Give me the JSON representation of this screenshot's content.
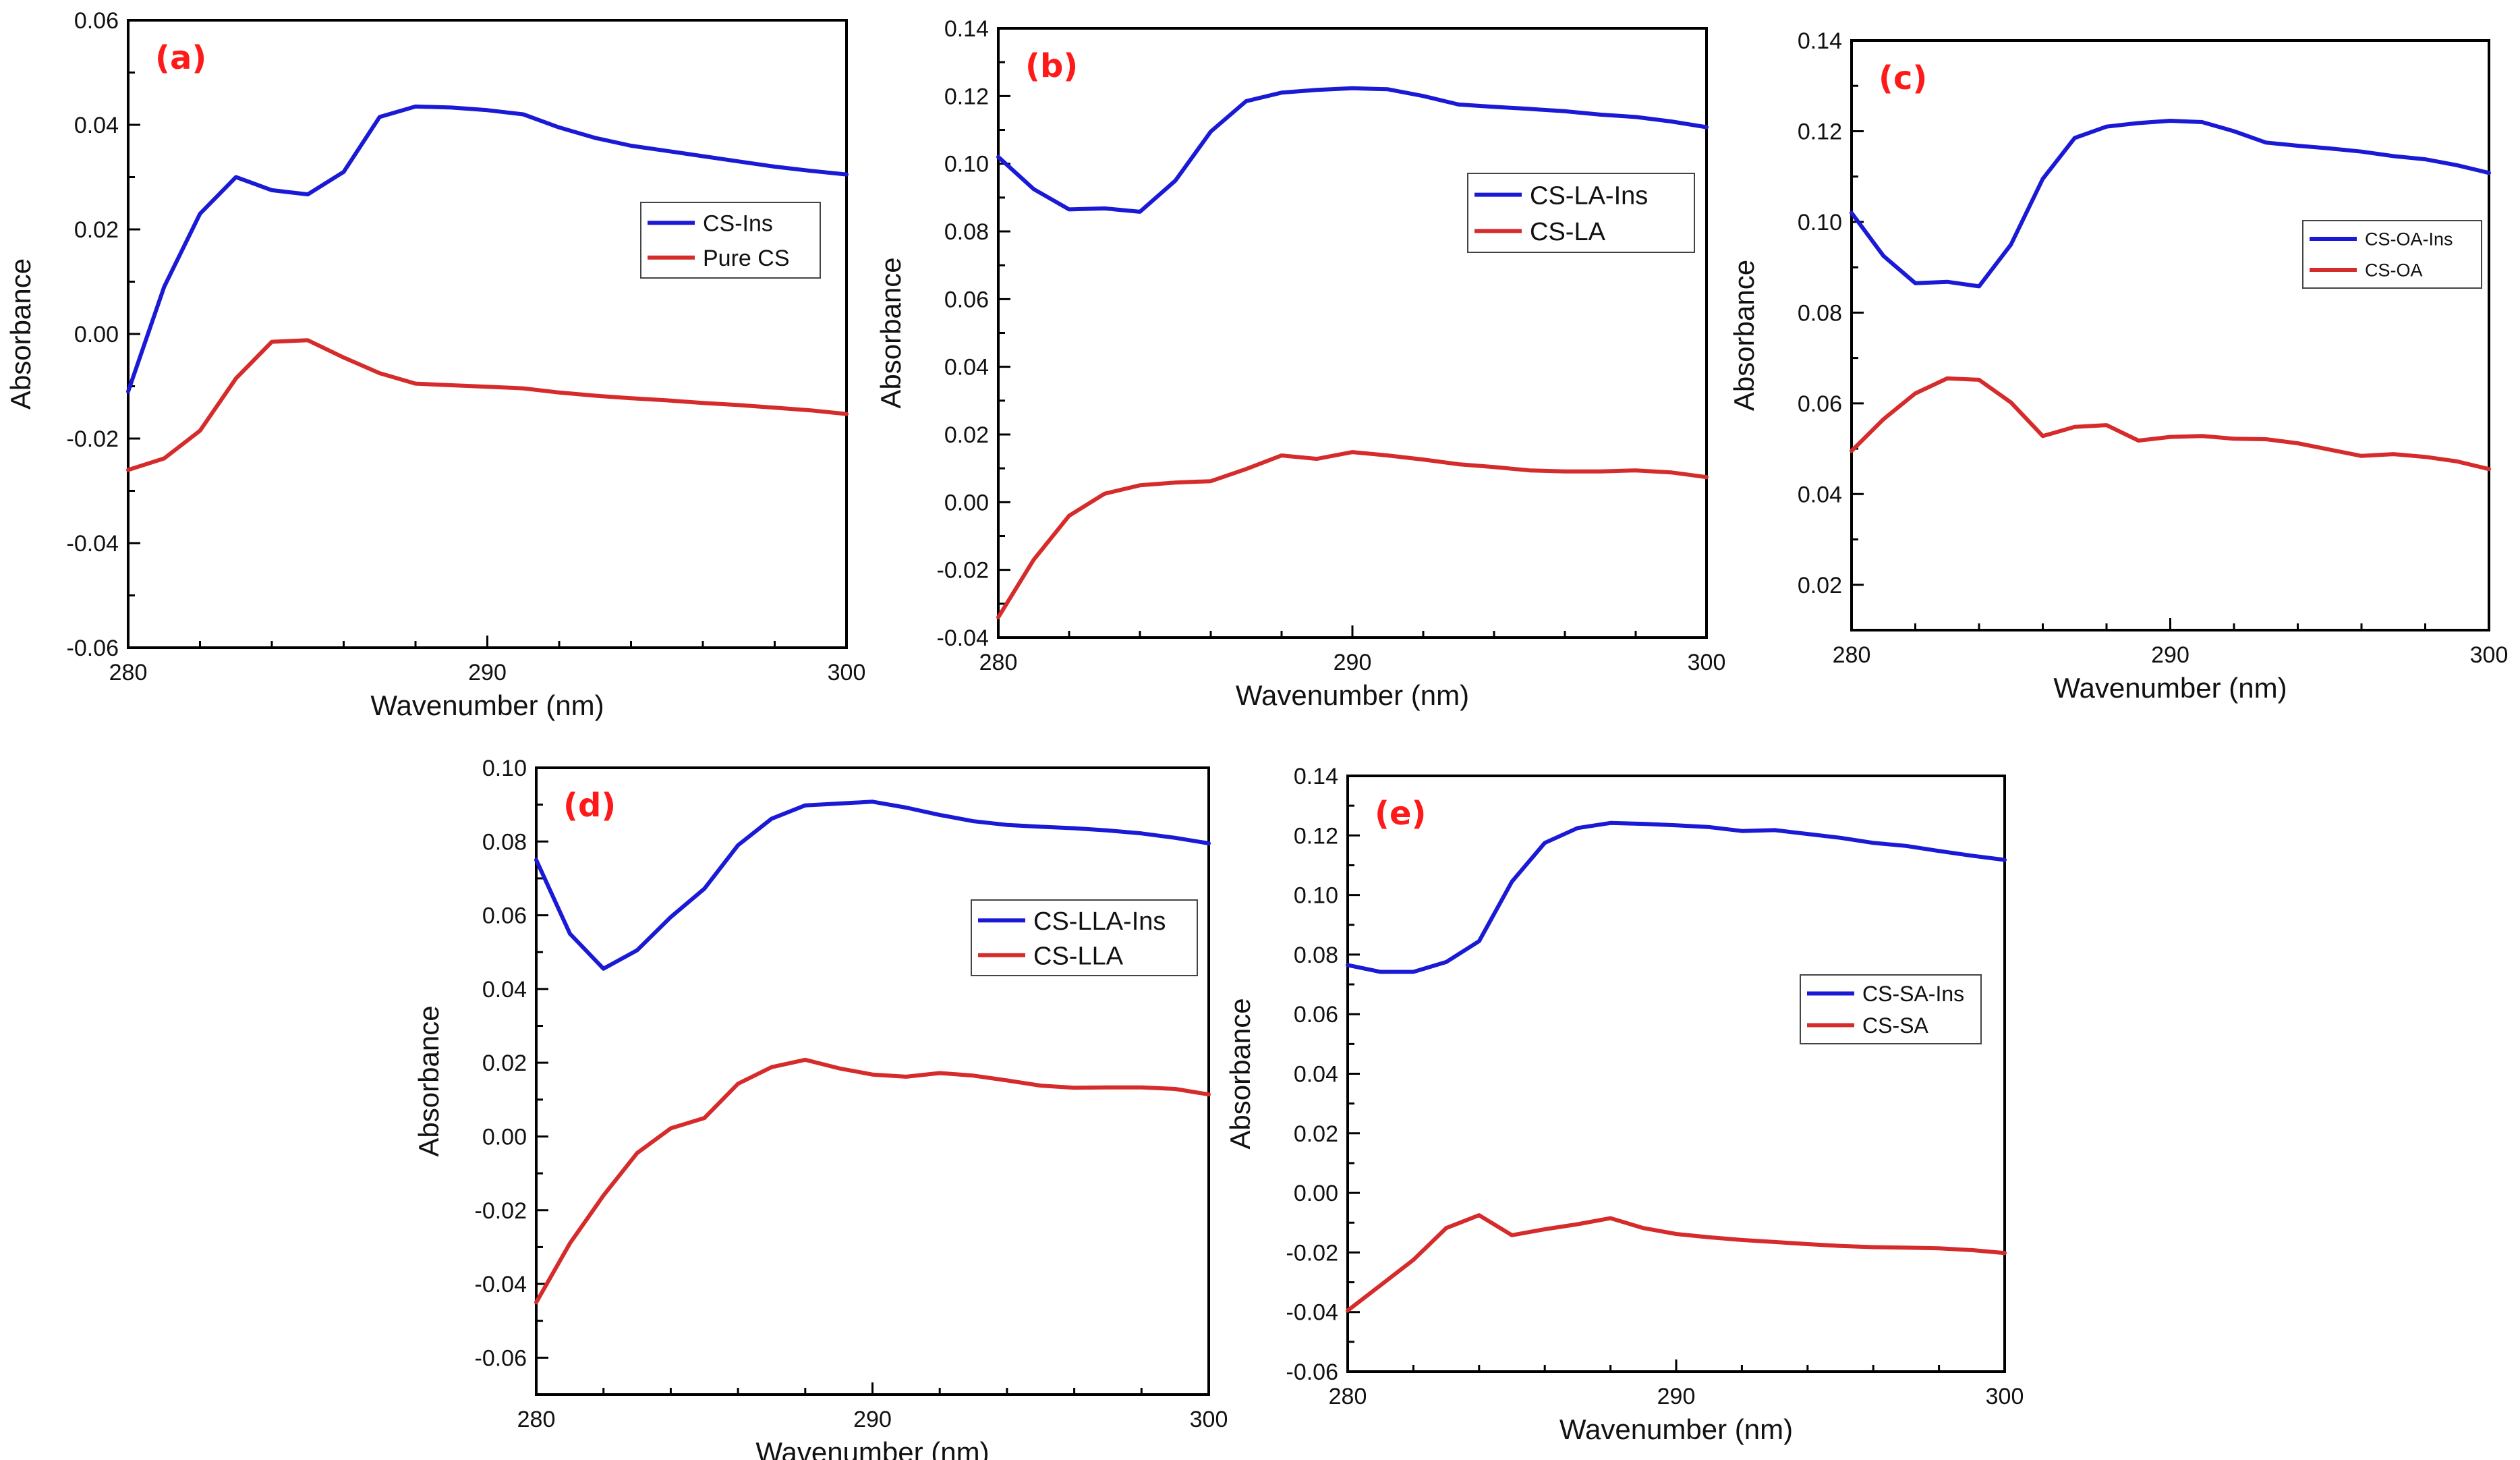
{
  "colors": {
    "ins": "#1a1ad6",
    "control": "#d62b2b",
    "panel_label": "#ff1a1a"
  },
  "chart_data": [
    {
      "type": "line",
      "panel_label": "(a)",
      "xlabel": "Wavenumber (nm)",
      "ylabel": "Absorbance",
      "xlim": [
        280,
        300
      ],
      "ylim": [
        -0.06,
        0.06
      ],
      "xticks": [
        280,
        290,
        300
      ],
      "xtick_labels": [
        "280",
        "290",
        "300"
      ],
      "yticks": [
        -0.06,
        -0.04,
        -0.02,
        0.0,
        0.02,
        0.04,
        0.06
      ],
      "ytick_labels": [
        "-0.06",
        "-0.04",
        "-0.02",
        "0.00",
        "0.02",
        "0.04",
        "0.06"
      ],
      "legend_position": "right",
      "series": [
        {
          "name": "CS-Ins",
          "color": "#1a1ad6",
          "x": [
            280,
            281,
            282,
            283,
            284,
            285,
            286,
            287,
            288,
            289,
            290,
            291,
            292,
            293,
            294,
            295,
            296,
            297,
            298,
            299,
            300
          ],
          "values": [
            -0.011,
            0.009,
            0.023,
            0.03,
            0.0275,
            0.0267,
            0.031,
            0.0415,
            0.0435,
            0.0433,
            0.0428,
            0.042,
            0.0395,
            0.0375,
            0.036,
            0.035,
            0.034,
            0.033,
            0.032,
            0.0312,
            0.0305
          ]
        },
        {
          "name": "Pure CS",
          "color": "#d62b2b",
          "x": [
            280,
            281,
            282,
            283,
            284,
            285,
            286,
            287,
            288,
            289,
            290,
            291,
            292,
            293,
            294,
            295,
            296,
            297,
            298,
            299,
            300
          ],
          "values": [
            -0.026,
            -0.0238,
            -0.0185,
            -0.0085,
            -0.0015,
            -0.0012,
            -0.0045,
            -0.0075,
            -0.0095,
            -0.0098,
            -0.0101,
            -0.0104,
            -0.0112,
            -0.0118,
            -0.0123,
            -0.0127,
            -0.0132,
            -0.0136,
            -0.0141,
            -0.0146,
            -0.0153
          ]
        }
      ]
    },
    {
      "type": "line",
      "panel_label": "(b)",
      "xlabel": "Wavenumber (nm)",
      "ylabel": "Absorbance",
      "xlim": [
        280,
        300
      ],
      "ylim": [
        -0.04,
        0.14
      ],
      "xticks": [
        280,
        290,
        300
      ],
      "xtick_labels": [
        "280",
        "290",
        "300"
      ],
      "yticks": [
        -0.04,
        -0.02,
        0.0,
        0.02,
        0.04,
        0.06,
        0.08,
        0.1,
        0.12,
        0.14
      ],
      "ytick_labels": [
        "-0.04",
        "-0.02",
        "0.00",
        "0.02",
        "0.04",
        "0.06",
        "0.08",
        "0.10",
        "0.12",
        "0.14"
      ],
      "legend_position": "right",
      "series": [
        {
          "name": "CS-LA-Ins",
          "color": "#1a1ad6",
          "x": [
            280,
            281,
            282,
            283,
            284,
            285,
            286,
            287,
            288,
            289,
            290,
            291,
            292,
            293,
            294,
            295,
            296,
            297,
            298,
            299,
            300
          ],
          "values": [
            0.102,
            0.0925,
            0.0865,
            0.0868,
            0.0858,
            0.095,
            0.1095,
            0.1185,
            0.121,
            0.1218,
            0.1223,
            0.122,
            0.12,
            0.1175,
            0.1168,
            0.1162,
            0.1155,
            0.1145,
            0.1138,
            0.1125,
            0.1108
          ]
        },
        {
          "name": "CS-LA",
          "color": "#d62b2b",
          "x": [
            280,
            281,
            282,
            283,
            284,
            285,
            286,
            287,
            288,
            289,
            290,
            291,
            292,
            293,
            294,
            295,
            296,
            297,
            298,
            299,
            300
          ],
          "values": [
            -0.034,
            -0.017,
            -0.004,
            0.0025,
            0.005,
            0.0058,
            0.0062,
            0.0098,
            0.0138,
            0.0128,
            0.0148,
            0.0138,
            0.0126,
            0.0112,
            0.0104,
            0.0094,
            0.0091,
            0.0091,
            0.0094,
            0.0088,
            0.0074
          ]
        }
      ]
    },
    {
      "type": "line",
      "panel_label": "(c)",
      "xlabel": "Wavenumber (nm)",
      "ylabel": "Absorbance",
      "xlim": [
        280,
        300
      ],
      "ylim": [
        0.01,
        0.14
      ],
      "xticks": [
        280,
        290,
        300
      ],
      "xtick_labels": [
        "280",
        "290",
        "300"
      ],
      "yticks": [
        0.02,
        0.04,
        0.06,
        0.08,
        0.1,
        0.12,
        0.14
      ],
      "ytick_labels": [
        "0.02",
        "0.04",
        "0.06",
        "0.08",
        "0.10",
        "0.12",
        "0.14"
      ],
      "legend_position": "right",
      "series": [
        {
          "name": "CS-OA-Ins",
          "color": "#1a1ad6",
          "x": [
            280,
            281,
            282,
            283,
            284,
            285,
            286,
            287,
            288,
            289,
            290,
            291,
            292,
            293,
            294,
            295,
            296,
            297,
            298,
            299,
            300
          ],
          "values": [
            0.102,
            0.0925,
            0.0865,
            0.0868,
            0.0858,
            0.095,
            0.1095,
            0.1185,
            0.121,
            0.1218,
            0.1223,
            0.122,
            0.12,
            0.1175,
            0.1168,
            0.1162,
            0.1155,
            0.1145,
            0.1138,
            0.1125,
            0.1108
          ]
        },
        {
          "name": "CS-OA",
          "color": "#d62b2b",
          "x": [
            280,
            281,
            282,
            283,
            284,
            285,
            286,
            287,
            288,
            289,
            290,
            291,
            292,
            293,
            294,
            295,
            296,
            297,
            298,
            299,
            300
          ],
          "values": [
            0.0495,
            0.0565,
            0.0622,
            0.0655,
            0.0652,
            0.0602,
            0.0528,
            0.0548,
            0.0552,
            0.0518,
            0.0526,
            0.0528,
            0.0522,
            0.0521,
            0.0512,
            0.0498,
            0.0484,
            0.0488,
            0.0482,
            0.0472,
            0.0455
          ]
        }
      ]
    },
    {
      "type": "line",
      "panel_label": "(d)",
      "xlabel": "Wavenumber (nm)",
      "ylabel": "Absorbance",
      "xlim": [
        280,
        300
      ],
      "ylim": [
        -0.07,
        0.1
      ],
      "xticks": [
        280,
        290,
        300
      ],
      "xtick_labels": [
        "280",
        "290",
        "300"
      ],
      "yticks": [
        -0.06,
        -0.04,
        -0.02,
        0.0,
        0.02,
        0.04,
        0.06,
        0.08,
        0.1
      ],
      "ytick_labels": [
        "-0.06",
        "-0.04",
        "-0.02",
        "0.00",
        "0.02",
        "0.04",
        "0.06",
        "0.08",
        "0.10"
      ],
      "legend_position": "right",
      "series": [
        {
          "name": "CS-LLA-Ins",
          "color": "#1a1ad6",
          "x": [
            280,
            281,
            282,
            283,
            284,
            285,
            286,
            287,
            288,
            289,
            290,
            291,
            292,
            293,
            294,
            295,
            296,
            297,
            298,
            299,
            300
          ],
          "values": [
            0.075,
            0.055,
            0.0455,
            0.0505,
            0.0595,
            0.0672,
            0.079,
            0.0862,
            0.0898,
            0.0903,
            0.0908,
            0.0892,
            0.0872,
            0.0855,
            0.0845,
            0.084,
            0.0836,
            0.083,
            0.0822,
            0.081,
            0.0795
          ]
        },
        {
          "name": "CS-LLA",
          "color": "#d62b2b",
          "x": [
            280,
            281,
            282,
            283,
            284,
            285,
            286,
            287,
            288,
            289,
            290,
            291,
            292,
            293,
            294,
            295,
            296,
            297,
            298,
            299,
            300
          ],
          "values": [
            -0.045,
            -0.029,
            -0.016,
            -0.0045,
            0.0022,
            0.005,
            0.0143,
            0.0188,
            0.0208,
            0.0185,
            0.0168,
            0.0162,
            0.0172,
            0.0165,
            0.0152,
            0.0138,
            0.0132,
            0.0133,
            0.0133,
            0.0129,
            0.0114
          ]
        }
      ]
    },
    {
      "type": "line",
      "panel_label": "(e)",
      "xlabel": "Wavenumber (nm)",
      "ylabel": "Absorbance",
      "xlim": [
        280,
        300
      ],
      "ylim": [
        -0.06,
        0.14
      ],
      "xticks": [
        280,
        290,
        300
      ],
      "xtick_labels": [
        "280",
        "290",
        "300"
      ],
      "yticks": [
        -0.06,
        -0.04,
        -0.02,
        0.0,
        0.02,
        0.04,
        0.06,
        0.08,
        0.1,
        0.12,
        0.14
      ],
      "ytick_labels": [
        "-0.06",
        "-0.04",
        "-0.02",
        "0.00",
        "0.02",
        "0.04",
        "0.06",
        "0.08",
        "0.10",
        "0.12",
        "0.14"
      ],
      "legend_position": "right",
      "series": [
        {
          "name": "CS-SA-Ins",
          "color": "#1a1ad6",
          "x": [
            280,
            281,
            282,
            283,
            284,
            285,
            286,
            287,
            288,
            289,
            290,
            291,
            292,
            293,
            294,
            295,
            296,
            297,
            298,
            299,
            300
          ],
          "values": [
            0.0765,
            0.0742,
            0.0742,
            0.0775,
            0.0845,
            0.1045,
            0.1175,
            0.1225,
            0.1242,
            0.1239,
            0.1234,
            0.1228,
            0.1215,
            0.1218,
            0.1205,
            0.1192,
            0.1175,
            0.1165,
            0.1148,
            0.1132,
            0.1118
          ]
        },
        {
          "name": "CS-SA",
          "color": "#d62b2b",
          "x": [
            280,
            281,
            282,
            283,
            284,
            285,
            286,
            287,
            288,
            289,
            290,
            291,
            292,
            293,
            294,
            295,
            296,
            297,
            298,
            299,
            300
          ],
          "values": [
            -0.0395,
            -0.031,
            -0.0225,
            -0.0118,
            -0.0075,
            -0.0142,
            -0.0122,
            -0.0105,
            -0.0085,
            -0.0118,
            -0.0138,
            -0.0149,
            -0.0158,
            -0.0165,
            -0.0172,
            -0.0178,
            -0.0182,
            -0.0184,
            -0.0186,
            -0.0192,
            -0.0202
          ]
        }
      ]
    }
  ]
}
